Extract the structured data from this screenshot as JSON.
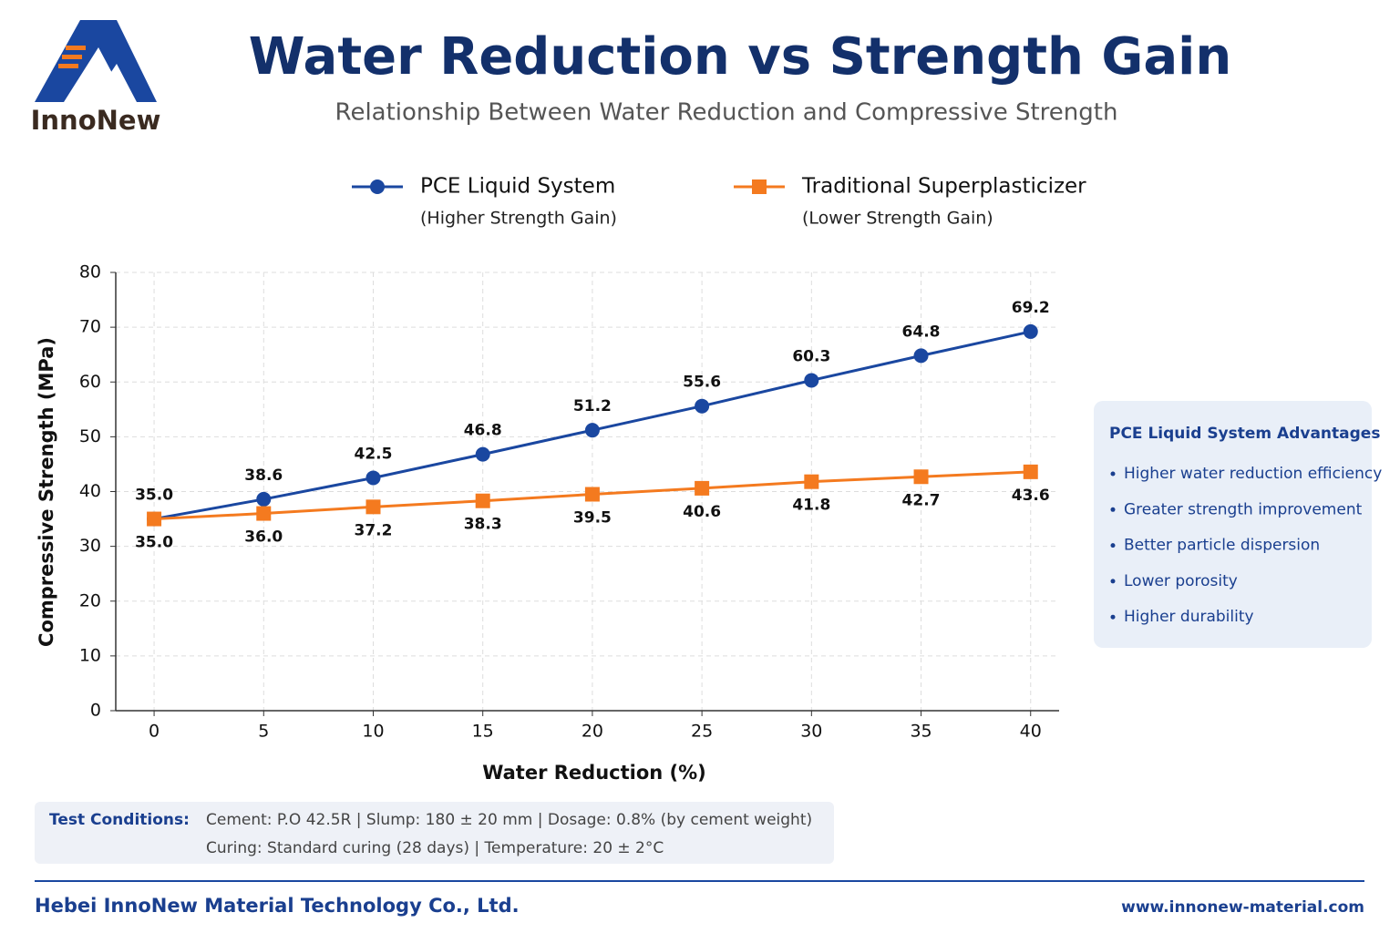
{
  "logo": {
    "text": "InnoNew"
  },
  "chart_data": {
    "type": "line",
    "title": "Water Reduction vs Strength Gain",
    "subtitle": "Relationship Between Water Reduction and Compressive Strength",
    "x_label": "Water Reduction (%)",
    "y_label": "Compressive Strength (MPa)",
    "x": [
      0,
      5,
      10,
      15,
      20,
      25,
      30,
      35,
      40
    ],
    "xlim": [
      -1.75,
      41.3
    ],
    "xticks": [
      0,
      5,
      10,
      15,
      20,
      25,
      30,
      35,
      40
    ],
    "ylim": [
      0,
      80
    ],
    "yticks": [
      0,
      10,
      20,
      30,
      40,
      50,
      60,
      70,
      80
    ],
    "grid": true,
    "series": [
      {
        "name": "PCE Liquid System",
        "note": "(Higher Strength Gain)",
        "color": "#1a47a0",
        "marker": "circle",
        "values": [
          35.0,
          38.6,
          42.5,
          46.8,
          51.2,
          55.6,
          60.3,
          64.8,
          69.2
        ],
        "value_labels": [
          "35.0",
          "38.6",
          "42.5",
          "46.8",
          "51.2",
          "55.6",
          "60.3",
          "64.8",
          "69.2"
        ]
      },
      {
        "name": "Traditional Superplasticizer",
        "note": "(Lower Strength Gain)",
        "color": "#f47a1f",
        "marker": "square",
        "values": [
          35.0,
          36.0,
          37.2,
          38.3,
          39.5,
          40.6,
          41.8,
          42.7,
          43.6
        ],
        "value_labels": [
          "35.0",
          "36.0",
          "37.2",
          "38.3",
          "39.5",
          "40.6",
          "41.8",
          "42.7",
          "43.6"
        ]
      }
    ]
  },
  "advantages": {
    "title": "PCE Liquid System Advantages",
    "items": [
      "Higher water reduction efficiency",
      "Greater strength improvement",
      "Better particle dispersion",
      "Lower porosity",
      "Higher durability"
    ]
  },
  "test_conditions": {
    "label": "Test Conditions:",
    "lines": [
      "Cement: P.O 42.5R | Slump: 180 ± 20 mm | Dosage: 0.8% (by cement weight)",
      "Curing: Standard curing (28 days) | Temperature: 20 ± 2°C"
    ]
  },
  "footer": {
    "company": "Hebei InnoNew Material Technology Co., Ltd.",
    "url": "www.innonew-material.com"
  }
}
